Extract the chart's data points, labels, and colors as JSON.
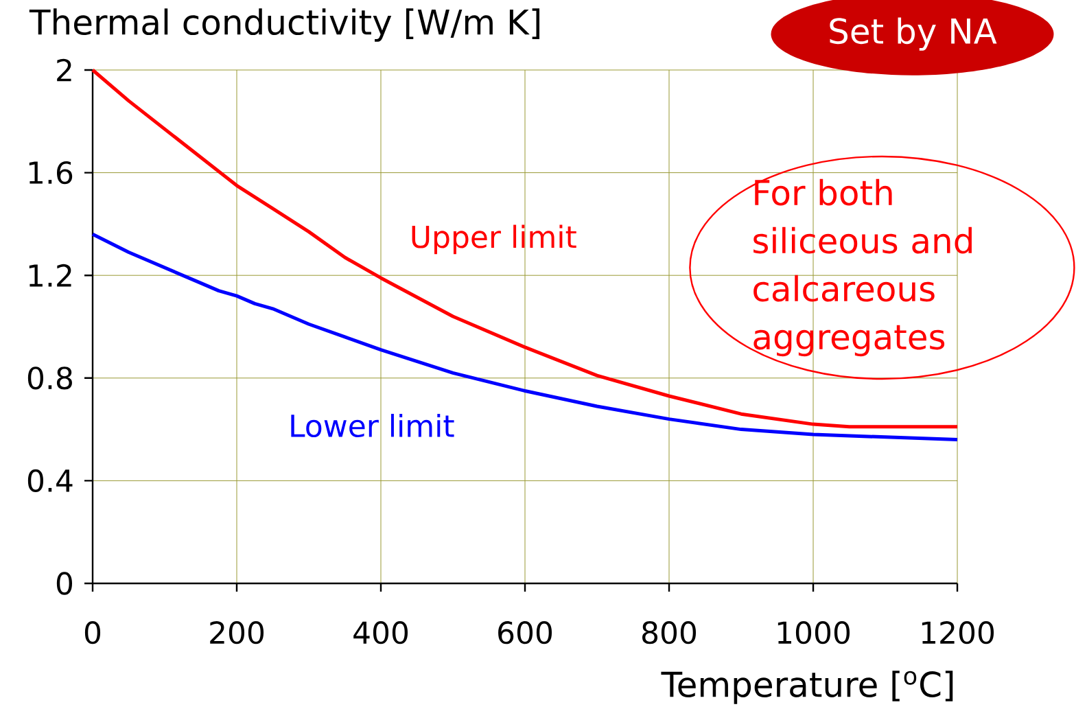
{
  "chart_data": {
    "type": "line",
    "xlabel": "Temperature [$^{o}$C]",
    "ylabel": "Thermal conductivity [W/m K]",
    "annotations": [
      "Set by NA",
      "For both siliceous and calcareous aggregates"
    ],
    "xlim": [
      0,
      1200
    ],
    "ylim": [
      0,
      2
    ],
    "xticks": [
      0,
      200,
      400,
      600,
      800,
      1000,
      1200
    ],
    "yticks": [
      0,
      0.4,
      0.8,
      1.2,
      1.6,
      2
    ],
    "grid": true,
    "series": [
      {
        "name": "Upper limit",
        "color": "#ff0000",
        "x": [
          0,
          50,
          100,
          150,
          200,
          250,
          300,
          350,
          400,
          500,
          600,
          700,
          800,
          900,
          1000,
          1050,
          1200
        ],
        "values": [
          2.0,
          1.88,
          1.77,
          1.66,
          1.55,
          1.46,
          1.37,
          1.27,
          1.19,
          1.04,
          0.92,
          0.81,
          0.73,
          0.66,
          0.62,
          0.61,
          0.61
        ]
      },
      {
        "name": "Lower limit",
        "color": "#0000ff",
        "x": [
          0,
          50,
          100,
          125,
          150,
          175,
          200,
          225,
          250,
          300,
          350,
          400,
          500,
          600,
          700,
          800,
          900,
          1000,
          1200
        ],
        "values": [
          1.36,
          1.29,
          1.23,
          1.2,
          1.17,
          1.14,
          1.12,
          1.09,
          1.07,
          1.01,
          0.96,
          0.91,
          0.82,
          0.75,
          0.69,
          0.64,
          0.6,
          0.58,
          0.56
        ]
      }
    ]
  }
}
